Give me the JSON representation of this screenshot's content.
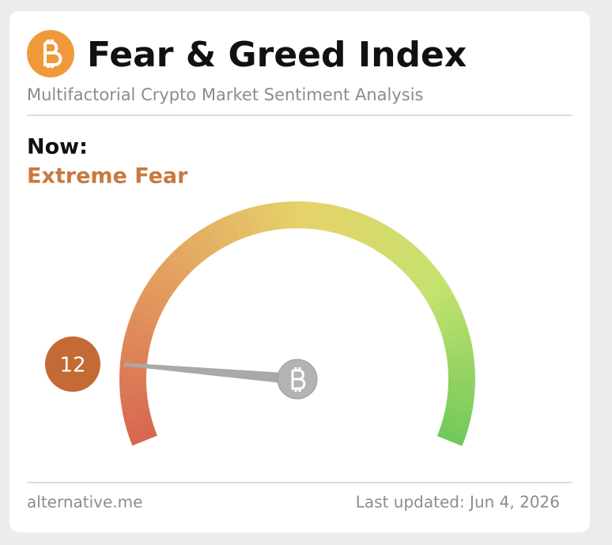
{
  "chart_data": {
    "type": "gauge",
    "title": "Fear & Greed Index",
    "subtitle": "Multifactorial Crypto Market Sentiment Analysis",
    "now_label": "Now:",
    "classification": "Extreme Fear",
    "value": 12,
    "ylim": [
      0,
      100
    ],
    "source": "alternative.me",
    "updated": "Last updated: Jun 4, 2026"
  }
}
